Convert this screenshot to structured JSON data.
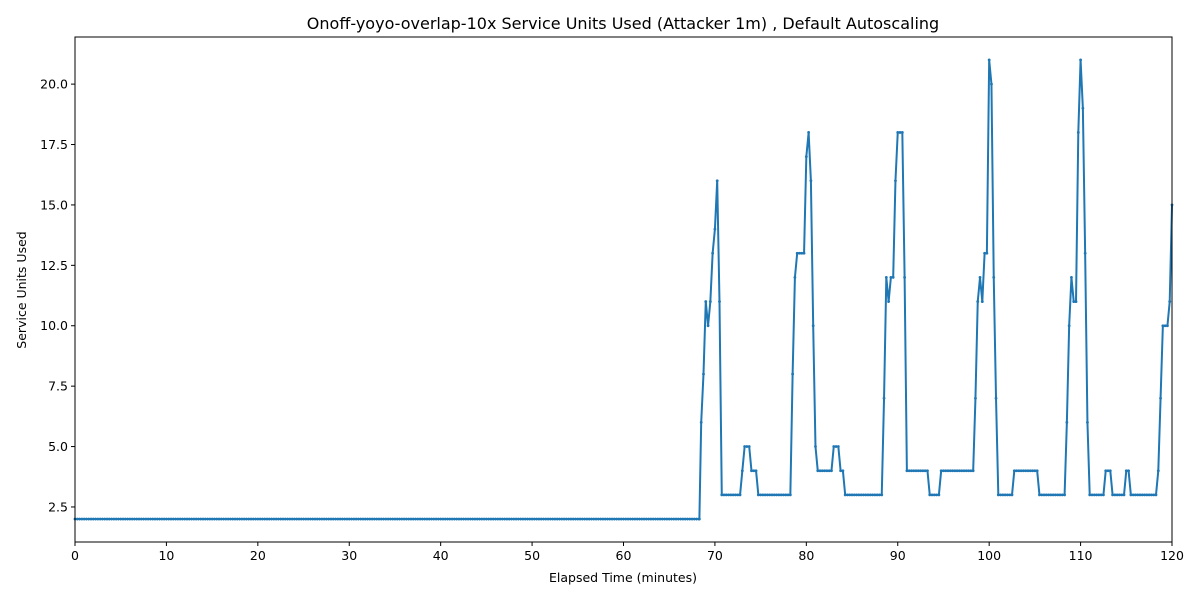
{
  "chart_data": {
    "type": "line",
    "title": "Onoff-yoyo-overlap-10x Service Units Used (Attacker 1m) , Default Autoscaling",
    "xlabel": "Elapsed Time (minutes)",
    "ylabel": "Service Units Used",
    "xlim": [
      0,
      120
    ],
    "ylim": [
      1.05,
      21.95
    ],
    "xticks": [
      0,
      10,
      20,
      30,
      40,
      50,
      60,
      70,
      80,
      90,
      100,
      110,
      120
    ],
    "yticks": [
      2.5,
      5.0,
      7.5,
      10.0,
      12.5,
      15.0,
      17.5,
      20.0
    ],
    "ytick_labels": [
      "2.5",
      "5.0",
      "7.5",
      "10.0",
      "12.5",
      "15.0",
      "17.5",
      "20.0"
    ],
    "grid": false,
    "color": "#1f77b4",
    "segments": [
      [
        0,
        2
      ],
      [
        68.3,
        2
      ],
      [
        68.5,
        6
      ],
      [
        68.75,
        8
      ],
      [
        69.0,
        11
      ],
      [
        69.25,
        10
      ],
      [
        69.5,
        11
      ],
      [
        69.75,
        13
      ],
      [
        70.0,
        14
      ],
      [
        70.25,
        16
      ],
      [
        70.5,
        11
      ],
      [
        70.75,
        3
      ],
      [
        72.75,
        3
      ],
      [
        73.0,
        4
      ],
      [
        73.25,
        5
      ],
      [
        73.75,
        5
      ],
      [
        74.0,
        4
      ],
      [
        74.5,
        4
      ],
      [
        74.75,
        3
      ],
      [
        78.25,
        3
      ],
      [
        78.5,
        8
      ],
      [
        78.75,
        12
      ],
      [
        79.0,
        13
      ],
      [
        79.75,
        13
      ],
      [
        80.0,
        17
      ],
      [
        80.25,
        18
      ],
      [
        80.5,
        16
      ],
      [
        80.75,
        10
      ],
      [
        81.0,
        5
      ],
      [
        81.25,
        4
      ],
      [
        82.75,
        4
      ],
      [
        83.0,
        5
      ],
      [
        83.5,
        5
      ],
      [
        83.75,
        4
      ],
      [
        84.0,
        4
      ],
      [
        84.25,
        3
      ],
      [
        88.25,
        3
      ],
      [
        88.5,
        7
      ],
      [
        88.75,
        12
      ],
      [
        89.0,
        11
      ],
      [
        89.25,
        12
      ],
      [
        89.5,
        12
      ],
      [
        89.75,
        16
      ],
      [
        90.0,
        18
      ],
      [
        90.5,
        18
      ],
      [
        90.75,
        12
      ],
      [
        91.0,
        4
      ],
      [
        93.25,
        4
      ],
      [
        93.5,
        3
      ],
      [
        94.5,
        3
      ],
      [
        94.75,
        4
      ],
      [
        98.25,
        4
      ],
      [
        98.5,
        7
      ],
      [
        98.75,
        11
      ],
      [
        99.0,
        12
      ],
      [
        99.25,
        11
      ],
      [
        99.5,
        13
      ],
      [
        99.75,
        13
      ],
      [
        100.0,
        21
      ],
      [
        100.25,
        20
      ],
      [
        100.5,
        12
      ],
      [
        100.75,
        7
      ],
      [
        101.0,
        3
      ],
      [
        102.5,
        3
      ],
      [
        102.75,
        4
      ],
      [
        105.25,
        4
      ],
      [
        105.5,
        3
      ],
      [
        108.25,
        3
      ],
      [
        108.5,
        6
      ],
      [
        108.75,
        10
      ],
      [
        109.0,
        12
      ],
      [
        109.25,
        11
      ],
      [
        109.5,
        11
      ],
      [
        109.75,
        18
      ],
      [
        110.0,
        21
      ],
      [
        110.25,
        19
      ],
      [
        110.5,
        13
      ],
      [
        110.75,
        6
      ],
      [
        111.0,
        3
      ],
      [
        112.5,
        3
      ],
      [
        112.75,
        4
      ],
      [
        113.25,
        4
      ],
      [
        113.5,
        3
      ],
      [
        114.75,
        3
      ],
      [
        115.0,
        4
      ],
      [
        115.25,
        4
      ],
      [
        115.5,
        3
      ],
      [
        118.25,
        3
      ],
      [
        118.5,
        4
      ],
      [
        118.75,
        7
      ],
      [
        119.0,
        10
      ],
      [
        119.5,
        10
      ],
      [
        119.75,
        11
      ],
      [
        120.0,
        15
      ]
    ]
  }
}
